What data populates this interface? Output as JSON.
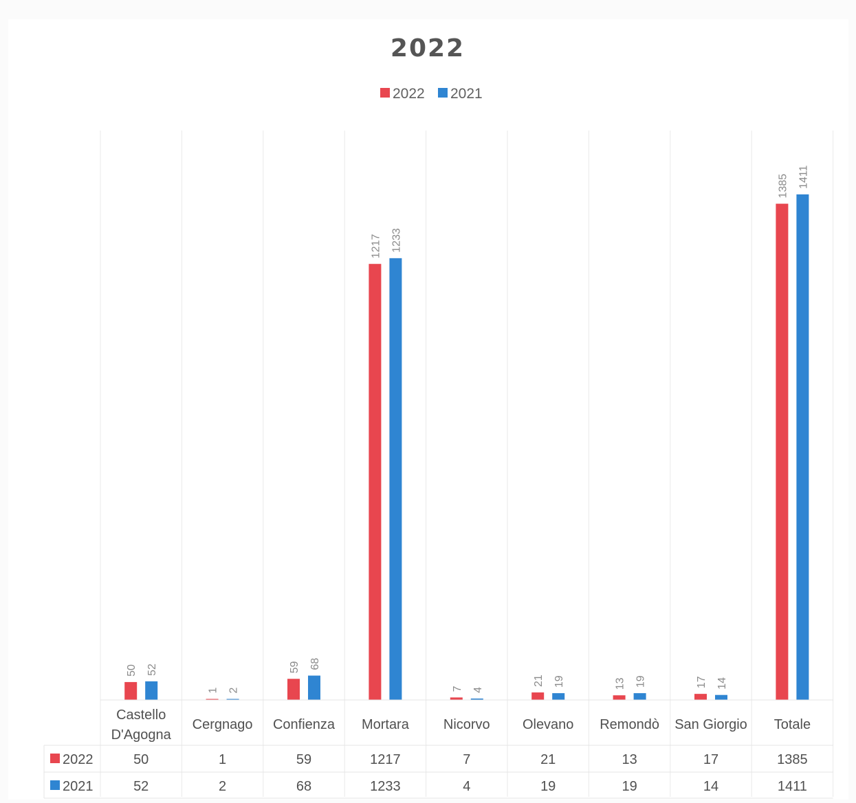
{
  "chart_data": {
    "type": "bar",
    "title": "2022",
    "legend": {
      "placement": "top"
    },
    "categories": [
      "Castello D'Agogna",
      "Cergnago",
      "Confienza",
      "Mortara",
      "Nicorvo",
      "Olevano",
      "Remondò",
      "San Giorgio",
      "Totale"
    ],
    "category_lines": [
      [
        "Castello",
        "D'Agogna"
      ],
      [
        "Cergnago"
      ],
      [
        "Confienza"
      ],
      [
        "Mortara"
      ],
      [
        "Nicorvo"
      ],
      [
        "Olevano"
      ],
      [
        "Remondò"
      ],
      [
        "San Giorgio"
      ],
      [
        "Totale"
      ]
    ],
    "series": [
      {
        "name": "2022",
        "color": "#e8464f",
        "values": [
          50,
          1,
          59,
          1217,
          7,
          21,
          13,
          17,
          1385
        ]
      },
      {
        "name": "2021",
        "color": "#2f85d2",
        "values": [
          52,
          2,
          68,
          1233,
          4,
          19,
          19,
          14,
          1411
        ]
      }
    ],
    "ylim": [
      0,
      1411
    ],
    "data_table": true,
    "grid": "vertical category separators"
  }
}
